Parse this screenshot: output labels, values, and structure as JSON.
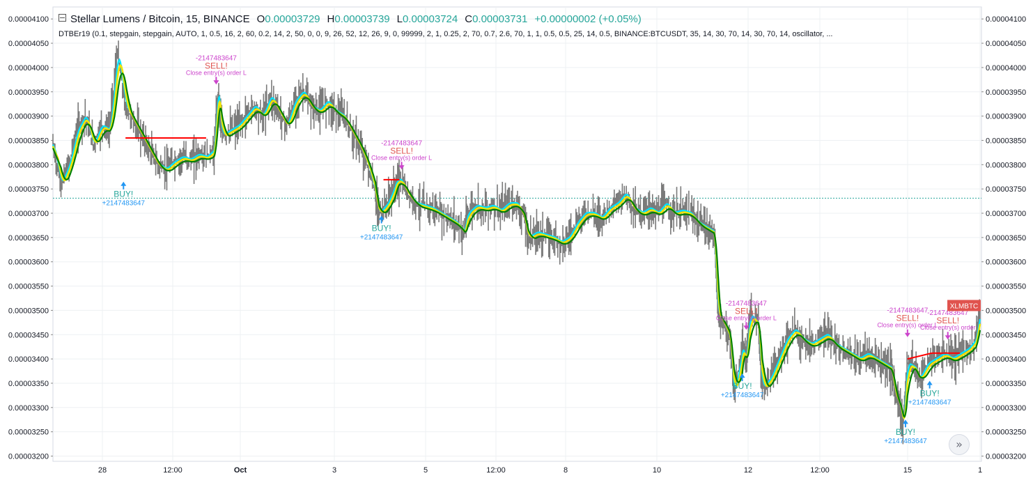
{
  "header": {
    "symbol": "Stellar Lumens / Bitcoin, 15, BINANCE",
    "open_label": "O",
    "open": "0.00003729",
    "high_label": "H",
    "high": "0.00003739",
    "low_label": "L",
    "low": "0.00003724",
    "close_label": "C",
    "close": "0.00003731",
    "change": "+0.00000002 (+0.05%)",
    "indicator": "DTBEr19 (0.1, stepgain, stepgain, AUTO, 1, 0.5, 16, 2, 60, 0.2, 14, 2, 50, 0, 0, 9, 26, 52, 12, 26, 9, 0, 99999, 2, 1, 0.25, 2, 70, 0.7, 2.6, 70, 1, 1, 0.5, 0.5, 25, 14, 0.5, BINANCE:BTCUSDT, 35, 14, 30, 70, 14, 30, 70, 14, oscillator, ..."
  },
  "nav_button": {
    "icon": "double-chevron-right-icon",
    "glyph": "»"
  },
  "chart_data": {
    "type": "line",
    "title": "Stellar Lumens / Bitcoin, 15, BINANCE",
    "x_tick_labels": [
      "28",
      "12:00",
      "Oct",
      "3",
      "5",
      "12:00",
      "8",
      "10",
      "12",
      "12:00",
      "15",
      "1"
    ],
    "y_tick_labels": [
      "0.00004100",
      "0.00004050",
      "0.00004000",
      "0.00003950",
      "0.00003900",
      "0.00003850",
      "0.00003800",
      "0.00003750",
      "0.00003700",
      "0.00003650",
      "0.00003600",
      "0.00003550",
      "0.00003500",
      "0.00003450",
      "0.00003400",
      "0.00003350",
      "0.00003300",
      "0.00003250",
      "0.00003200"
    ],
    "ylim": [
      3.2e-05,
      4.1e-05
    ],
    "y_axes": "both",
    "grid": true,
    "current_price": 3.731e-05,
    "symbol_badge": "XLMBTC",
    "symbol_badge_color": "#e0534e",
    "colors": {
      "price": "#7a7a7a",
      "ma_fast": "#00e5ff",
      "ma_mid": "#f2e600",
      "ma_slow": "#008000",
      "position": "#ff0000",
      "buy": "#2196f3",
      "buy_text": "#26a69a",
      "sell": "#cc44cc",
      "sell_text": "#e0534e",
      "price_line": "#26a69a"
    },
    "price_path": [
      [
        0.0,
        3.84e-05
      ],
      [
        0.2,
        3.76e-05
      ],
      [
        0.4,
        3.8e-05
      ],
      [
        0.6,
        3.87e-05
      ],
      [
        0.8,
        3.9e-05
      ],
      [
        1.0,
        3.84e-05
      ],
      [
        1.2,
        3.88e-05
      ],
      [
        1.4,
        3.87e-05
      ],
      [
        1.6,
        4.03e-05
      ],
      [
        1.8,
        3.92e-05
      ],
      [
        2.0,
        3.89e-05
      ],
      [
        2.2,
        3.86e-05
      ],
      [
        2.4,
        3.83e-05
      ],
      [
        2.6,
        3.8e-05
      ],
      [
        2.8,
        3.79e-05
      ],
      [
        3.0,
        3.805e-05
      ],
      [
        3.2,
        3.815e-05
      ],
      [
        3.4,
        3.81e-05
      ],
      [
        3.6,
        3.82e-05
      ],
      [
        3.8,
        3.815e-05
      ],
      [
        4.0,
        3.83e-05
      ],
      [
        4.1,
        3.95e-05
      ],
      [
        4.2,
        3.86e-05
      ],
      [
        4.4,
        3.87e-05
      ],
      [
        4.6,
        3.88e-05
      ],
      [
        4.8,
        3.9e-05
      ],
      [
        5.0,
        3.92e-05
      ],
      [
        5.2,
        3.9e-05
      ],
      [
        5.4,
        3.94e-05
      ],
      [
        5.6,
        3.91e-05
      ],
      [
        5.8,
        3.88e-05
      ],
      [
        6.0,
        3.93e-05
      ],
      [
        6.2,
        3.95e-05
      ],
      [
        6.4,
        3.92e-05
      ],
      [
        6.6,
        3.91e-05
      ],
      [
        6.8,
        3.93e-05
      ],
      [
        7.0,
        3.91e-05
      ],
      [
        7.2,
        3.9e-05
      ],
      [
        7.4,
        3.87e-05
      ],
      [
        7.6,
        3.84e-05
      ],
      [
        7.8,
        3.8e-05
      ],
      [
        8.0,
        3.74e-05
      ],
      [
        8.1,
        3.7e-05
      ],
      [
        8.3,
        3.72e-05
      ],
      [
        8.5,
        3.76e-05
      ],
      [
        8.6,
        3.77e-05
      ],
      [
        8.8,
        3.74e-05
      ],
      [
        9.0,
        3.72e-05
      ],
      [
        9.2,
        3.715e-05
      ],
      [
        9.4,
        3.71e-05
      ],
      [
        9.6,
        3.7e-05
      ],
      [
        9.8,
        3.69e-05
      ],
      [
        10.0,
        3.68e-05
      ],
      [
        10.2,
        3.66e-05
      ],
      [
        10.3,
        3.7e-05
      ],
      [
        10.5,
        3.715e-05
      ],
      [
        10.7,
        3.71e-05
      ],
      [
        10.9,
        3.715e-05
      ],
      [
        11.1,
        3.705e-05
      ],
      [
        11.3,
        3.72e-05
      ],
      [
        11.5,
        3.72e-05
      ],
      [
        11.7,
        3.69e-05
      ],
      [
        11.8,
        3.65e-05
      ],
      [
        12.0,
        3.66e-05
      ],
      [
        12.2,
        3.655e-05
      ],
      [
        12.4,
        3.65e-05
      ],
      [
        12.6,
        3.64e-05
      ],
      [
        12.8,
        3.65e-05
      ],
      [
        13.0,
        3.68e-05
      ],
      [
        13.2,
        3.7e-05
      ],
      [
        13.4,
        3.7e-05
      ],
      [
        13.6,
        3.69e-05
      ],
      [
        13.8,
        3.71e-05
      ],
      [
        14.0,
        3.72e-05
      ],
      [
        14.2,
        3.74e-05
      ],
      [
        14.4,
        3.71e-05
      ],
      [
        14.6,
        3.7e-05
      ],
      [
        14.8,
        3.71e-05
      ],
      [
        15.0,
        3.7e-05
      ],
      [
        15.2,
        3.72e-05
      ],
      [
        15.4,
        3.7e-05
      ],
      [
        15.6,
        3.705e-05
      ],
      [
        15.8,
        3.7e-05
      ],
      [
        16.0,
        3.68e-05
      ],
      [
        16.2,
        3.67e-05
      ],
      [
        16.4,
        3.66e-05
      ],
      [
        16.5,
        3.5e-05
      ],
      [
        16.6,
        3.48e-05
      ],
      [
        16.8,
        3.44e-05
      ],
      [
        16.9,
        3.33e-05
      ],
      [
        17.1,
        3.42e-05
      ],
      [
        17.2,
        3.4e-05
      ],
      [
        17.3,
        3.49e-05
      ],
      [
        17.5,
        3.47e-05
      ],
      [
        17.6,
        3.34e-05
      ],
      [
        17.8,
        3.36e-05
      ],
      [
        18.0,
        3.4e-05
      ],
      [
        18.2,
        3.44e-05
      ],
      [
        18.4,
        3.46e-05
      ],
      [
        18.6,
        3.44e-05
      ],
      [
        18.8,
        3.43e-05
      ],
      [
        19.0,
        3.44e-05
      ],
      [
        19.2,
        3.45e-05
      ],
      [
        19.4,
        3.43e-05
      ],
      [
        19.6,
        3.42e-05
      ],
      [
        19.8,
        3.41e-05
      ],
      [
        20.0,
        3.4e-05
      ],
      [
        20.2,
        3.41e-05
      ],
      [
        20.4,
        3.4e-05
      ],
      [
        20.6,
        3.39e-05
      ],
      [
        20.8,
        3.38e-05
      ],
      [
        20.9,
        3.33e-05
      ],
      [
        21.0,
        3.31e-05
      ],
      [
        21.1,
        3.27e-05
      ],
      [
        21.2,
        3.39e-05
      ],
      [
        21.4,
        3.38e-05
      ],
      [
        21.5,
        3.36e-05
      ],
      [
        21.7,
        3.39e-05
      ],
      [
        21.9,
        3.4e-05
      ],
      [
        22.1,
        3.41e-05
      ],
      [
        22.3,
        3.4e-05
      ],
      [
        22.5,
        3.41e-05
      ],
      [
        22.7,
        3.42e-05
      ],
      [
        22.9,
        3.44e-05
      ],
      [
        23.0,
        3.49e-05
      ]
    ],
    "position_segments": [
      {
        "from": [
          1.8,
          3.855e-05
        ],
        "to": [
          3.8,
          3.855e-05
        ]
      },
      {
        "from": [
          8.2,
          3.769e-05
        ],
        "to": [
          8.6,
          3.769e-05
        ]
      },
      {
        "from": [
          21.2,
          3.4e-05
        ],
        "to": [
          21.8,
          3.412e-05
        ]
      },
      {
        "from": [
          21.8,
          3.412e-05
        ],
        "to": [
          22.5,
          3.412e-05
        ]
      }
    ],
    "signals": [
      {
        "type": "buy",
        "x": 1.75,
        "y": 3.765e-05,
        "label": "BUY!",
        "qty": "+2147483647"
      },
      {
        "type": "sell",
        "x": 4.05,
        "y": 3.965e-05,
        "label": "SELL!",
        "qty": "-2147483647",
        "note": "Close entry(s) order L"
      },
      {
        "type": "buy",
        "x": 8.15,
        "y": 3.695e-05,
        "label": "BUY!",
        "qty": "+2147483647"
      },
      {
        "type": "sell",
        "x": 8.65,
        "y": 3.79e-05,
        "label": "SELL!",
        "qty": "-2147483647",
        "note": "Close entry(s) order L"
      },
      {
        "type": "buy",
        "x": 17.1,
        "y": 3.37e-05,
        "label": "BUY!",
        "qty": "+2147483647"
      },
      {
        "type": "sell",
        "x": 17.2,
        "y": 3.46e-05,
        "label": "SELL!",
        "qty": "-2147483647",
        "note": "Close entry(s) order L"
      },
      {
        "type": "buy",
        "x": 21.15,
        "y": 3.275e-05,
        "label": "BUY!",
        "qty": "+2147483647"
      },
      {
        "type": "sell",
        "x": 21.2,
        "y": 3.445e-05,
        "label": "SELL!",
        "qty": "-2147483647",
        "note": "Close entry(s) order L"
      },
      {
        "type": "buy",
        "x": 21.75,
        "y": 3.355e-05,
        "label": "BUY!",
        "qty": "+2147483647"
      },
      {
        "type": "sell",
        "x": 22.2,
        "y": 3.44e-05,
        "label": "SELL!",
        "qty": "-2147483647",
        "note": "Close entry(s) order"
      }
    ]
  }
}
